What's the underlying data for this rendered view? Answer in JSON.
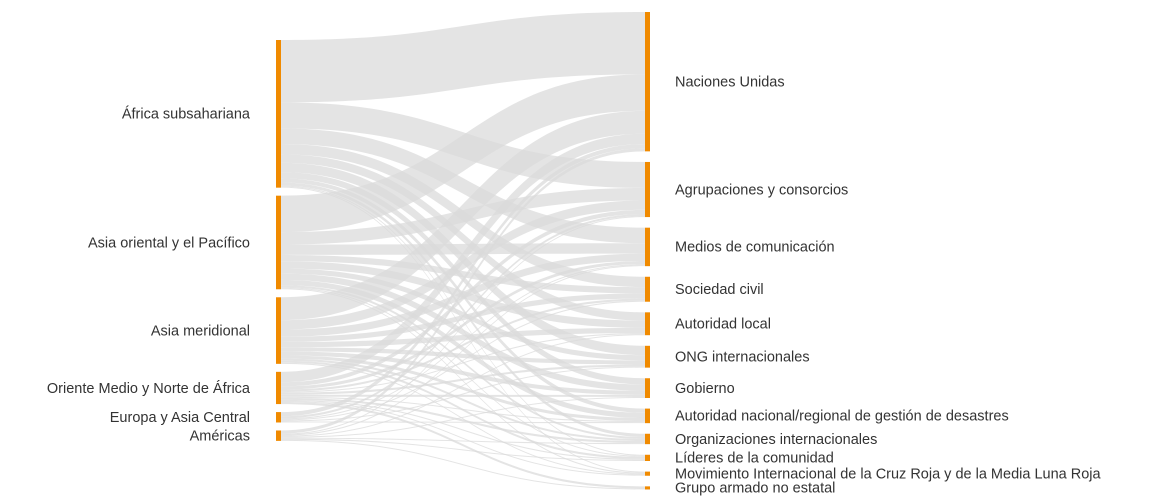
{
  "chart_data": {
    "type": "sankey",
    "nodes": [
      "África subsahariana",
      "Asia oriental y el Pacífico",
      "Asia meridional",
      "Oriente Medio y Norte de África",
      "Europa y Asia Central",
      "Américas",
      "Naciones Unidas",
      "Agrupaciones y consorcios",
      "Medios de comunicación",
      "Sociedad civil",
      "Autoridad local",
      "ONG internacionales",
      "Gobierno",
      "Autoridad nacional/regional de gestión de desastres",
      "Organizaciones internacionales",
      "Líderes de la comunidad",
      "Movimiento Internacional de la Cruz Roja y de la Media Luna Roja",
      "Grupo armado no estatal"
    ],
    "links": [
      {
        "source": 0,
        "target": 6,
        "value": 60
      },
      {
        "source": 0,
        "target": 7,
        "value": 25
      },
      {
        "source": 0,
        "target": 8,
        "value": 15
      },
      {
        "source": 0,
        "target": 9,
        "value": 10
      },
      {
        "source": 0,
        "target": 10,
        "value": 8
      },
      {
        "source": 0,
        "target": 11,
        "value": 9
      },
      {
        "source": 0,
        "target": 12,
        "value": 6
      },
      {
        "source": 0,
        "target": 13,
        "value": 4
      },
      {
        "source": 0,
        "target": 14,
        "value": 3
      },
      {
        "source": 0,
        "target": 15,
        "value": 1
      },
      {
        "source": 0,
        "target": 16,
        "value": 1
      },
      {
        "source": 1,
        "target": 6,
        "value": 35
      },
      {
        "source": 1,
        "target": 7,
        "value": 12
      },
      {
        "source": 1,
        "target": 8,
        "value": 10
      },
      {
        "source": 1,
        "target": 9,
        "value": 6
      },
      {
        "source": 1,
        "target": 10,
        "value": 7
      },
      {
        "source": 1,
        "target": 11,
        "value": 5
      },
      {
        "source": 1,
        "target": 12,
        "value": 6
      },
      {
        "source": 1,
        "target": 13,
        "value": 5
      },
      {
        "source": 1,
        "target": 14,
        "value": 2
      },
      {
        "source": 1,
        "target": 15,
        "value": 1
      },
      {
        "source": 1,
        "target": 16,
        "value": 1
      },
      {
        "source": 2,
        "target": 6,
        "value": 22
      },
      {
        "source": 2,
        "target": 7,
        "value": 9
      },
      {
        "source": 2,
        "target": 8,
        "value": 7
      },
      {
        "source": 2,
        "target": 9,
        "value": 5
      },
      {
        "source": 2,
        "target": 10,
        "value": 5
      },
      {
        "source": 2,
        "target": 11,
        "value": 4
      },
      {
        "source": 2,
        "target": 12,
        "value": 4
      },
      {
        "source": 2,
        "target": 13,
        "value": 3
      },
      {
        "source": 2,
        "target": 14,
        "value": 2
      },
      {
        "source": 2,
        "target": 15,
        "value": 2
      },
      {
        "source": 2,
        "target": 16,
        "value": 1
      },
      {
        "source": 3,
        "target": 6,
        "value": 10
      },
      {
        "source": 3,
        "target": 7,
        "value": 4
      },
      {
        "source": 3,
        "target": 8,
        "value": 3
      },
      {
        "source": 3,
        "target": 9,
        "value": 2
      },
      {
        "source": 3,
        "target": 10,
        "value": 1
      },
      {
        "source": 3,
        "target": 11,
        "value": 2
      },
      {
        "source": 3,
        "target": 12,
        "value": 2
      },
      {
        "source": 3,
        "target": 13,
        "value": 1
      },
      {
        "source": 3,
        "target": 14,
        "value": 2
      },
      {
        "source": 3,
        "target": 15,
        "value": 1
      },
      {
        "source": 3,
        "target": 16,
        "value": 1
      },
      {
        "source": 3,
        "target": 17,
        "value": 2
      },
      {
        "source": 4,
        "target": 6,
        "value": 4
      },
      {
        "source": 4,
        "target": 7,
        "value": 2
      },
      {
        "source": 4,
        "target": 8,
        "value": 1
      },
      {
        "source": 4,
        "target": 9,
        "value": 1
      },
      {
        "source": 4,
        "target": 11,
        "value": 1
      },
      {
        "source": 4,
        "target": 13,
        "value": 1
      },
      {
        "source": 5,
        "target": 6,
        "value": 3
      },
      {
        "source": 5,
        "target": 7,
        "value": 1
      },
      {
        "source": 5,
        "target": 8,
        "value": 1
      },
      {
        "source": 5,
        "target": 10,
        "value": 1
      },
      {
        "source": 5,
        "target": 12,
        "value": 1
      },
      {
        "source": 5,
        "target": 14,
        "value": 1
      },
      {
        "source": 5,
        "target": 15,
        "value": 1
      },
      {
        "source": 5,
        "target": 17,
        "value": 1
      }
    ],
    "node_color": "#f08a00",
    "link_color": "#d9d9d9"
  }
}
